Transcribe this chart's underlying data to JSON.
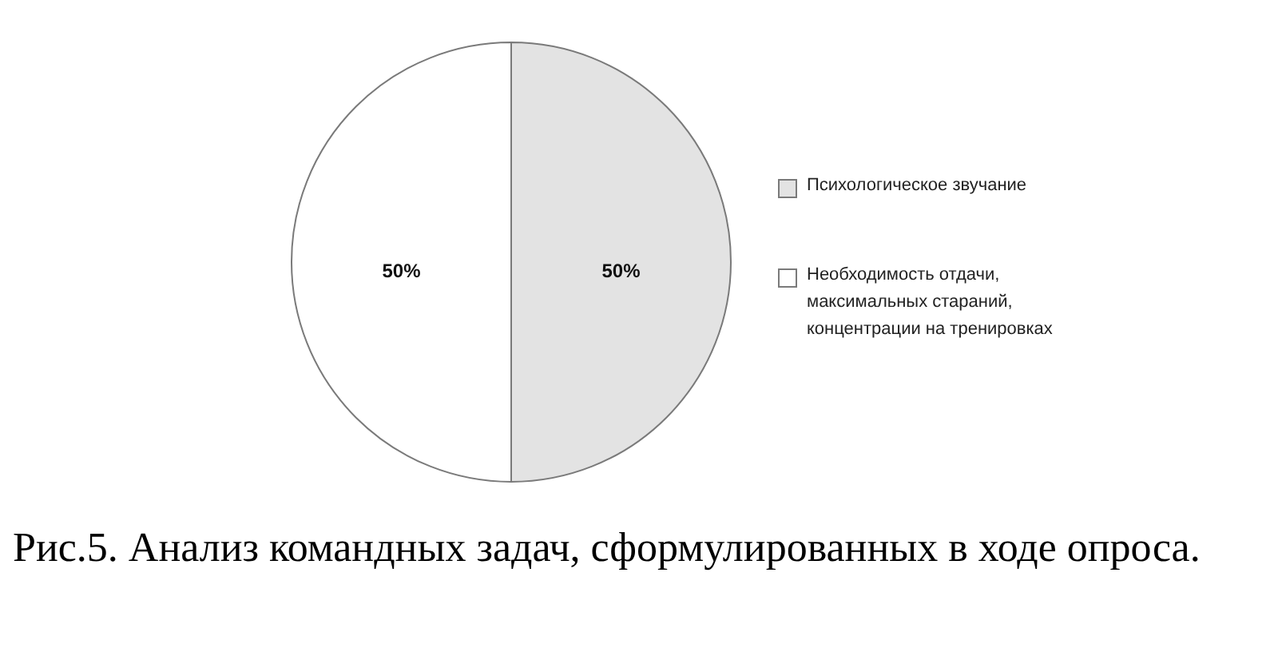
{
  "chart_data": {
    "type": "pie",
    "title": "Рис.5. Анализ командных задач, сформулированных в ходе опроса.",
    "categories": [
      "Психологическое звучание",
      "Необходимость отдачи, максимальных стараний, концентрации на тренировках"
    ],
    "values": [
      50,
      50
    ],
    "colors": [
      "#e3e3e3",
      "#ffffff"
    ],
    "value_labels": [
      "50%",
      "50%"
    ],
    "legend": "right"
  }
}
